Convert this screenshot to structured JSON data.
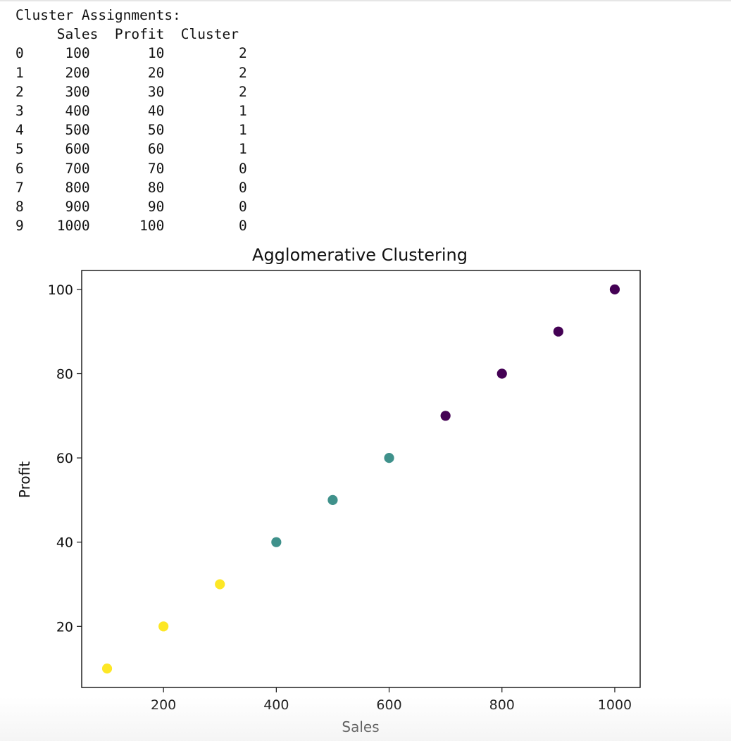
{
  "output": {
    "heading": "Cluster Assignments:",
    "columns": [
      "Sales",
      "Profit",
      "Cluster"
    ],
    "rows": [
      {
        "index": "0",
        "Sales": "100",
        "Profit": "10",
        "Cluster": "2"
      },
      {
        "index": "1",
        "Sales": "200",
        "Profit": "20",
        "Cluster": "2"
      },
      {
        "index": "2",
        "Sales": "300",
        "Profit": "30",
        "Cluster": "2"
      },
      {
        "index": "3",
        "Sales": "400",
        "Profit": "40",
        "Cluster": "1"
      },
      {
        "index": "4",
        "Sales": "500",
        "Profit": "50",
        "Cluster": "1"
      },
      {
        "index": "5",
        "Sales": "600",
        "Profit": "60",
        "Cluster": "1"
      },
      {
        "index": "6",
        "Sales": "700",
        "Profit": "70",
        "Cluster": "0"
      },
      {
        "index": "7",
        "Sales": "800",
        "Profit": "80",
        "Cluster": "0"
      },
      {
        "index": "8",
        "Sales": "900",
        "Profit": "90",
        "Cluster": "0"
      },
      {
        "index": "9",
        "Sales": "1000",
        "Profit": "100",
        "Cluster": "0"
      }
    ]
  },
  "chart_data": {
    "type": "scatter",
    "title": "Agglomerative Clustering",
    "xlabel": "Sales",
    "ylabel": "Profit",
    "xlim": [
      55,
      1045
    ],
    "ylim": [
      5.5,
      104.5
    ],
    "xticks": [
      200,
      400,
      600,
      800,
      1000
    ],
    "yticks": [
      20,
      40,
      60,
      80,
      100
    ],
    "grid": false,
    "points": [
      {
        "x": 100,
        "y": 10,
        "cluster": 2
      },
      {
        "x": 200,
        "y": 20,
        "cluster": 2
      },
      {
        "x": 300,
        "y": 30,
        "cluster": 2
      },
      {
        "x": 400,
        "y": 40,
        "cluster": 1
      },
      {
        "x": 500,
        "y": 50,
        "cluster": 1
      },
      {
        "x": 600,
        "y": 60,
        "cluster": 1
      },
      {
        "x": 700,
        "y": 70,
        "cluster": 0
      },
      {
        "x": 800,
        "y": 80,
        "cluster": 0
      },
      {
        "x": 900,
        "y": 90,
        "cluster": 0
      },
      {
        "x": 1000,
        "y": 100,
        "cluster": 0
      }
    ],
    "cluster_colors": {
      "0": "#440154",
      "1": "#3f918b",
      "2": "#fde725"
    }
  }
}
